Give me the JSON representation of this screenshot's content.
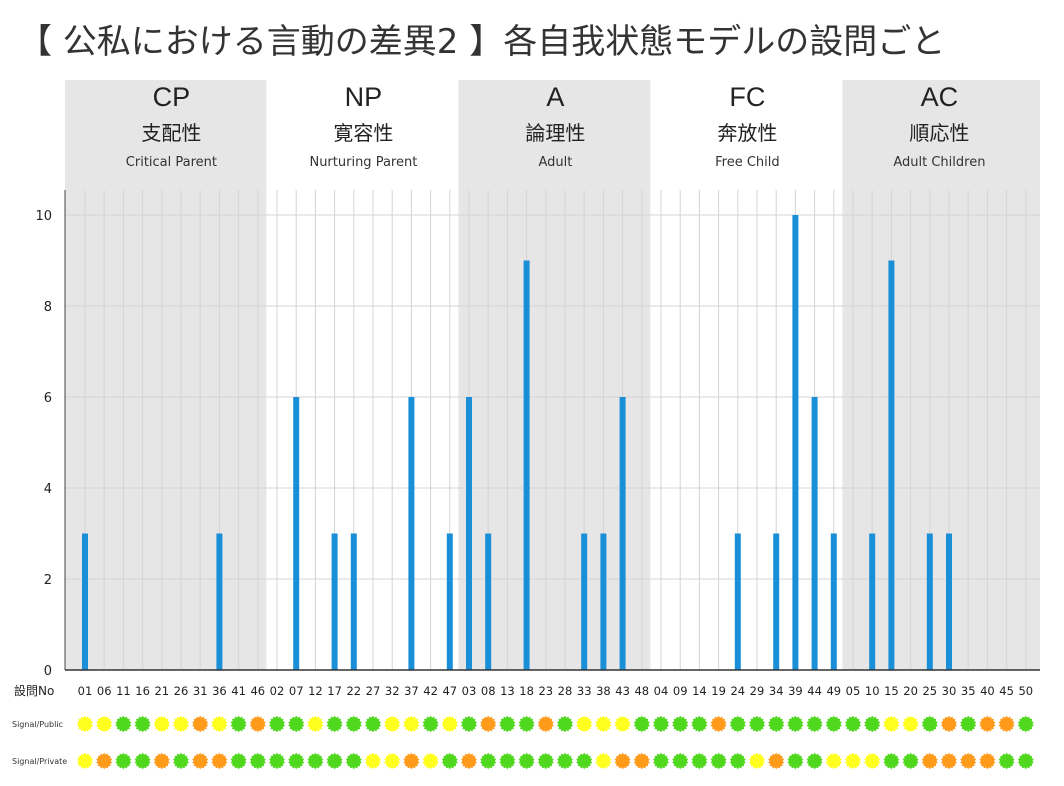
{
  "title": "【 公私における言動の差異2 】各自我状態モデルの設問ごと",
  "colors": {
    "bar": "#1a8fd8",
    "band": "#e6e6e6",
    "grid": "#d4d4d4",
    "green": "#4fd81e",
    "yellow": "#ffff1f",
    "orange": "#ff9a1a"
  },
  "xaxis_label": "設問No",
  "chart_data": {
    "type": "bar",
    "ylim": [
      0,
      10
    ],
    "yticks": [
      0,
      2,
      4,
      6,
      8,
      10
    ],
    "grid": true,
    "groups": [
      {
        "code": "CP",
        "name": "支配性",
        "en": "Critical Parent",
        "shaded": true,
        "questions": [
          "01",
          "06",
          "11",
          "16",
          "21",
          "26",
          "31",
          "36",
          "41",
          "46"
        ],
        "values": [
          3,
          0,
          0,
          0,
          0,
          0,
          0,
          3,
          0,
          0
        ]
      },
      {
        "code": "NP",
        "name": "寛容性",
        "en": "Nurturing Parent",
        "shaded": false,
        "questions": [
          "02",
          "07",
          "12",
          "17",
          "22",
          "27",
          "32",
          "37",
          "42",
          "47"
        ],
        "values": [
          0,
          6,
          0,
          3,
          3,
          0,
          0,
          6,
          0,
          3
        ]
      },
      {
        "code": "A",
        "name": "論理性",
        "en": "Adult",
        "shaded": true,
        "questions": [
          "03",
          "08",
          "13",
          "18",
          "23",
          "28",
          "33",
          "38",
          "43",
          "48"
        ],
        "values": [
          6,
          3,
          0,
          9,
          0,
          0,
          3,
          3,
          6,
          0
        ]
      },
      {
        "code": "FC",
        "name": "奔放性",
        "en": "Free Child",
        "shaded": false,
        "questions": [
          "04",
          "09",
          "14",
          "19",
          "24",
          "29",
          "34",
          "39",
          "44",
          "49"
        ],
        "values": [
          0,
          0,
          0,
          0,
          3,
          0,
          3,
          10,
          6,
          3
        ]
      },
      {
        "code": "AC",
        "name": "順応性",
        "en": "Adult Children",
        "shaded": true,
        "questions": [
          "05",
          "10",
          "15",
          "20",
          "25",
          "30",
          "35",
          "40",
          "45",
          "50"
        ],
        "values": [
          0,
          3,
          9,
          0,
          3,
          3,
          0,
          0,
          0,
          0
        ]
      }
    ]
  },
  "signals": [
    {
      "label": "Signal/Public",
      "values": [
        "Y",
        "Y",
        "G",
        "G",
        "Y",
        "Y",
        "O",
        "Y",
        "G",
        "O",
        "G",
        "G",
        "Y",
        "G",
        "G",
        "G",
        "Y",
        "Y",
        "G",
        "Y",
        "G",
        "O",
        "G",
        "G",
        "O",
        "G",
        "Y",
        "Y",
        "Y",
        "G",
        "G",
        "G",
        "G",
        "O",
        "G",
        "G",
        "G",
        "G",
        "G",
        "G",
        "G",
        "G",
        "Y",
        "Y",
        "G",
        "O",
        "G",
        "O",
        "O",
        "G"
      ]
    },
    {
      "label": "Signal/Private",
      "values": [
        "Y",
        "O",
        "G",
        "G",
        "O",
        "G",
        "O",
        "O",
        "G",
        "G",
        "G",
        "G",
        "G",
        "G",
        "G",
        "Y",
        "Y",
        "O",
        "Y",
        "G",
        "O",
        "G",
        "G",
        "G",
        "G",
        "G",
        "G",
        "Y",
        "O",
        "O",
        "G",
        "G",
        "G",
        "G",
        "G",
        "Y",
        "O",
        "G",
        "G",
        "Y",
        "Y",
        "Y",
        "G",
        "G",
        "O",
        "O",
        "O",
        "O",
        "G",
        "G"
      ]
    }
  ]
}
